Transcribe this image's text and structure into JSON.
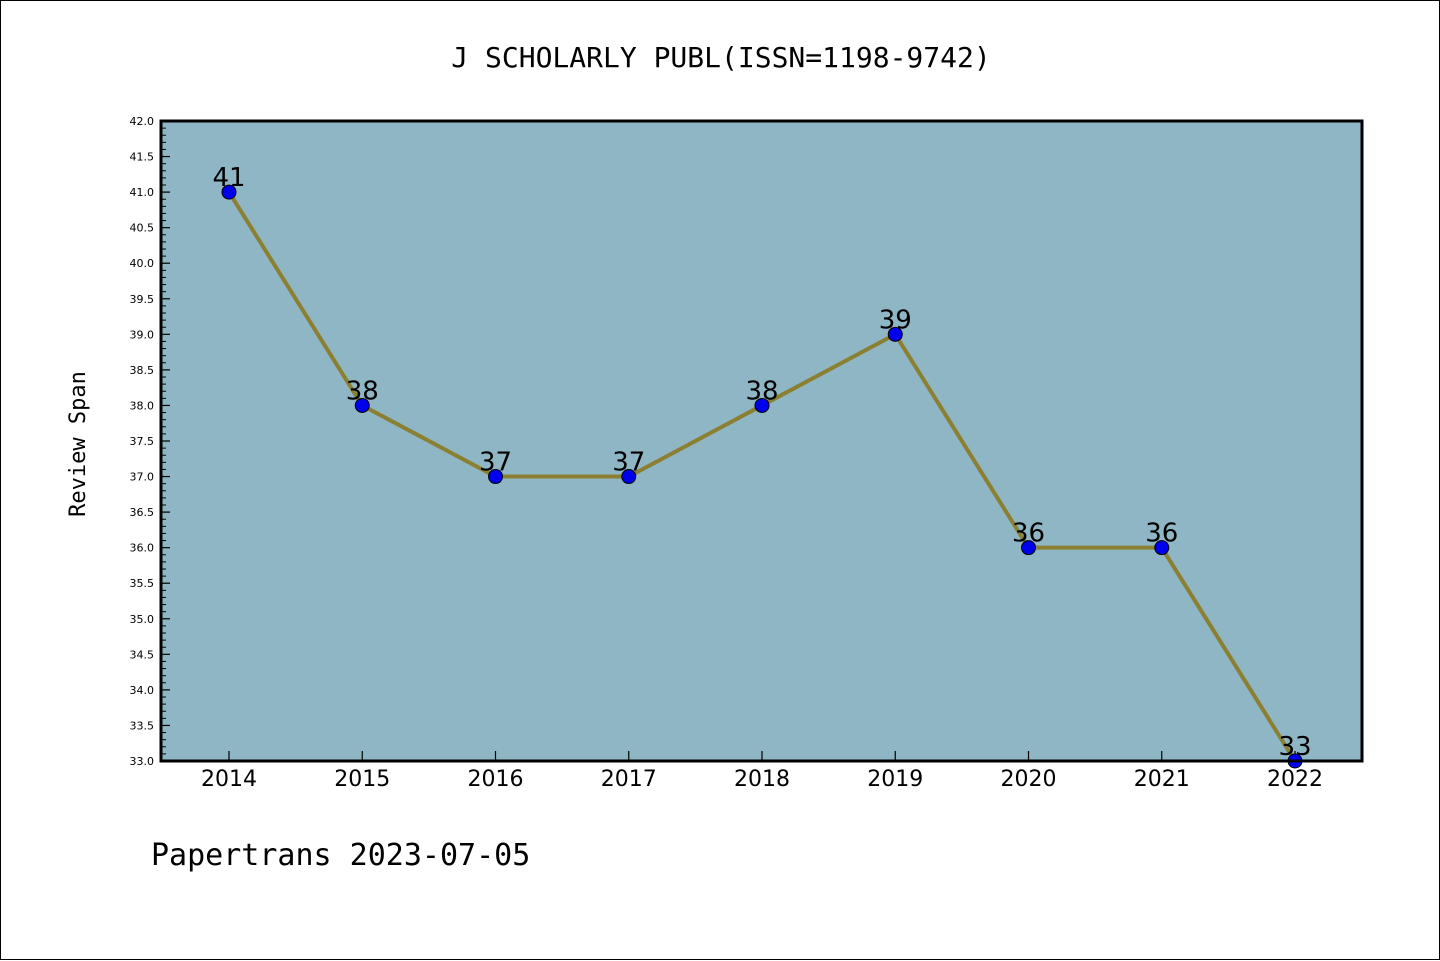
{
  "chart_data": {
    "type": "line",
    "title": "J SCHOLARLY PUBL(ISSN=1198-9742)",
    "ylabel": "Review Span",
    "xlabel": "",
    "categories": [
      "2014",
      "2015",
      "2016",
      "2017",
      "2018",
      "2019",
      "2020",
      "2021",
      "2022"
    ],
    "series": [
      {
        "values": [
          41,
          38,
          37,
          37,
          38,
          39,
          36,
          36,
          33
        ]
      }
    ],
    "ylim": [
      33.0,
      42.0
    ],
    "ytick_step": 0.5,
    "grid": false,
    "legend": "none",
    "colors": {
      "plot_background": "#8fb6c4",
      "line": "#8b8032",
      "marker": "#0000ee",
      "axes": "#000000"
    }
  },
  "footer": {
    "watermark": "Papertrans 2023-07-05"
  }
}
